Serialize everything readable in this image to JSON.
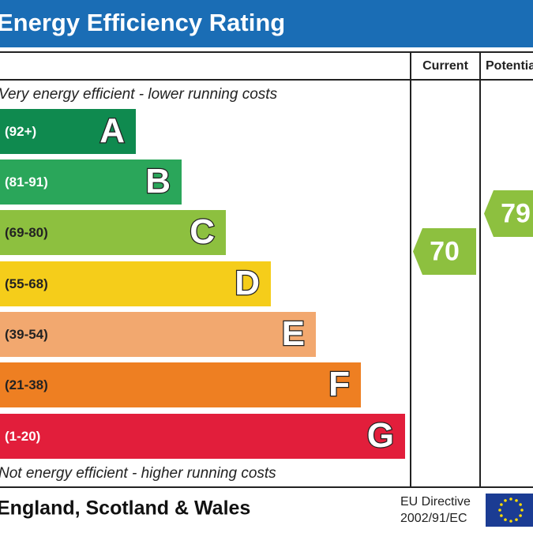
{
  "header": {
    "title": "Energy Efficiency Rating"
  },
  "columns": [
    "Current",
    "Potential"
  ],
  "top_note": "Very energy efficient - lower running costs",
  "bands": [
    {
      "range": "(92+)",
      "letter": "A",
      "color": "#0f8a4f"
    },
    {
      "range": "(81-91)",
      "letter": "B",
      "color": "#2aa65a"
    },
    {
      "range": "(69-80)",
      "letter": "C",
      "color": "#8dc03f"
    },
    {
      "range": "(55-68)",
      "letter": "D",
      "color": "#f5cd1a"
    },
    {
      "range": "(39-54)",
      "letter": "E",
      "color": "#f2a86f"
    },
    {
      "range": "(21-38)",
      "letter": "F",
      "color": "#ee7f22"
    },
    {
      "range": "(1-20)",
      "letter": "G",
      "color": "#e21e3b"
    }
  ],
  "bottom_note": "Not energy efficient - higher running costs",
  "current": {
    "value": 70,
    "color": "#8dc03f"
  },
  "potential": {
    "value": 79,
    "color": "#8dc03f"
  },
  "footer": {
    "region": "England, Scotland & Wales",
    "directive": [
      "EU Directive",
      "2002/91/EC"
    ]
  }
}
